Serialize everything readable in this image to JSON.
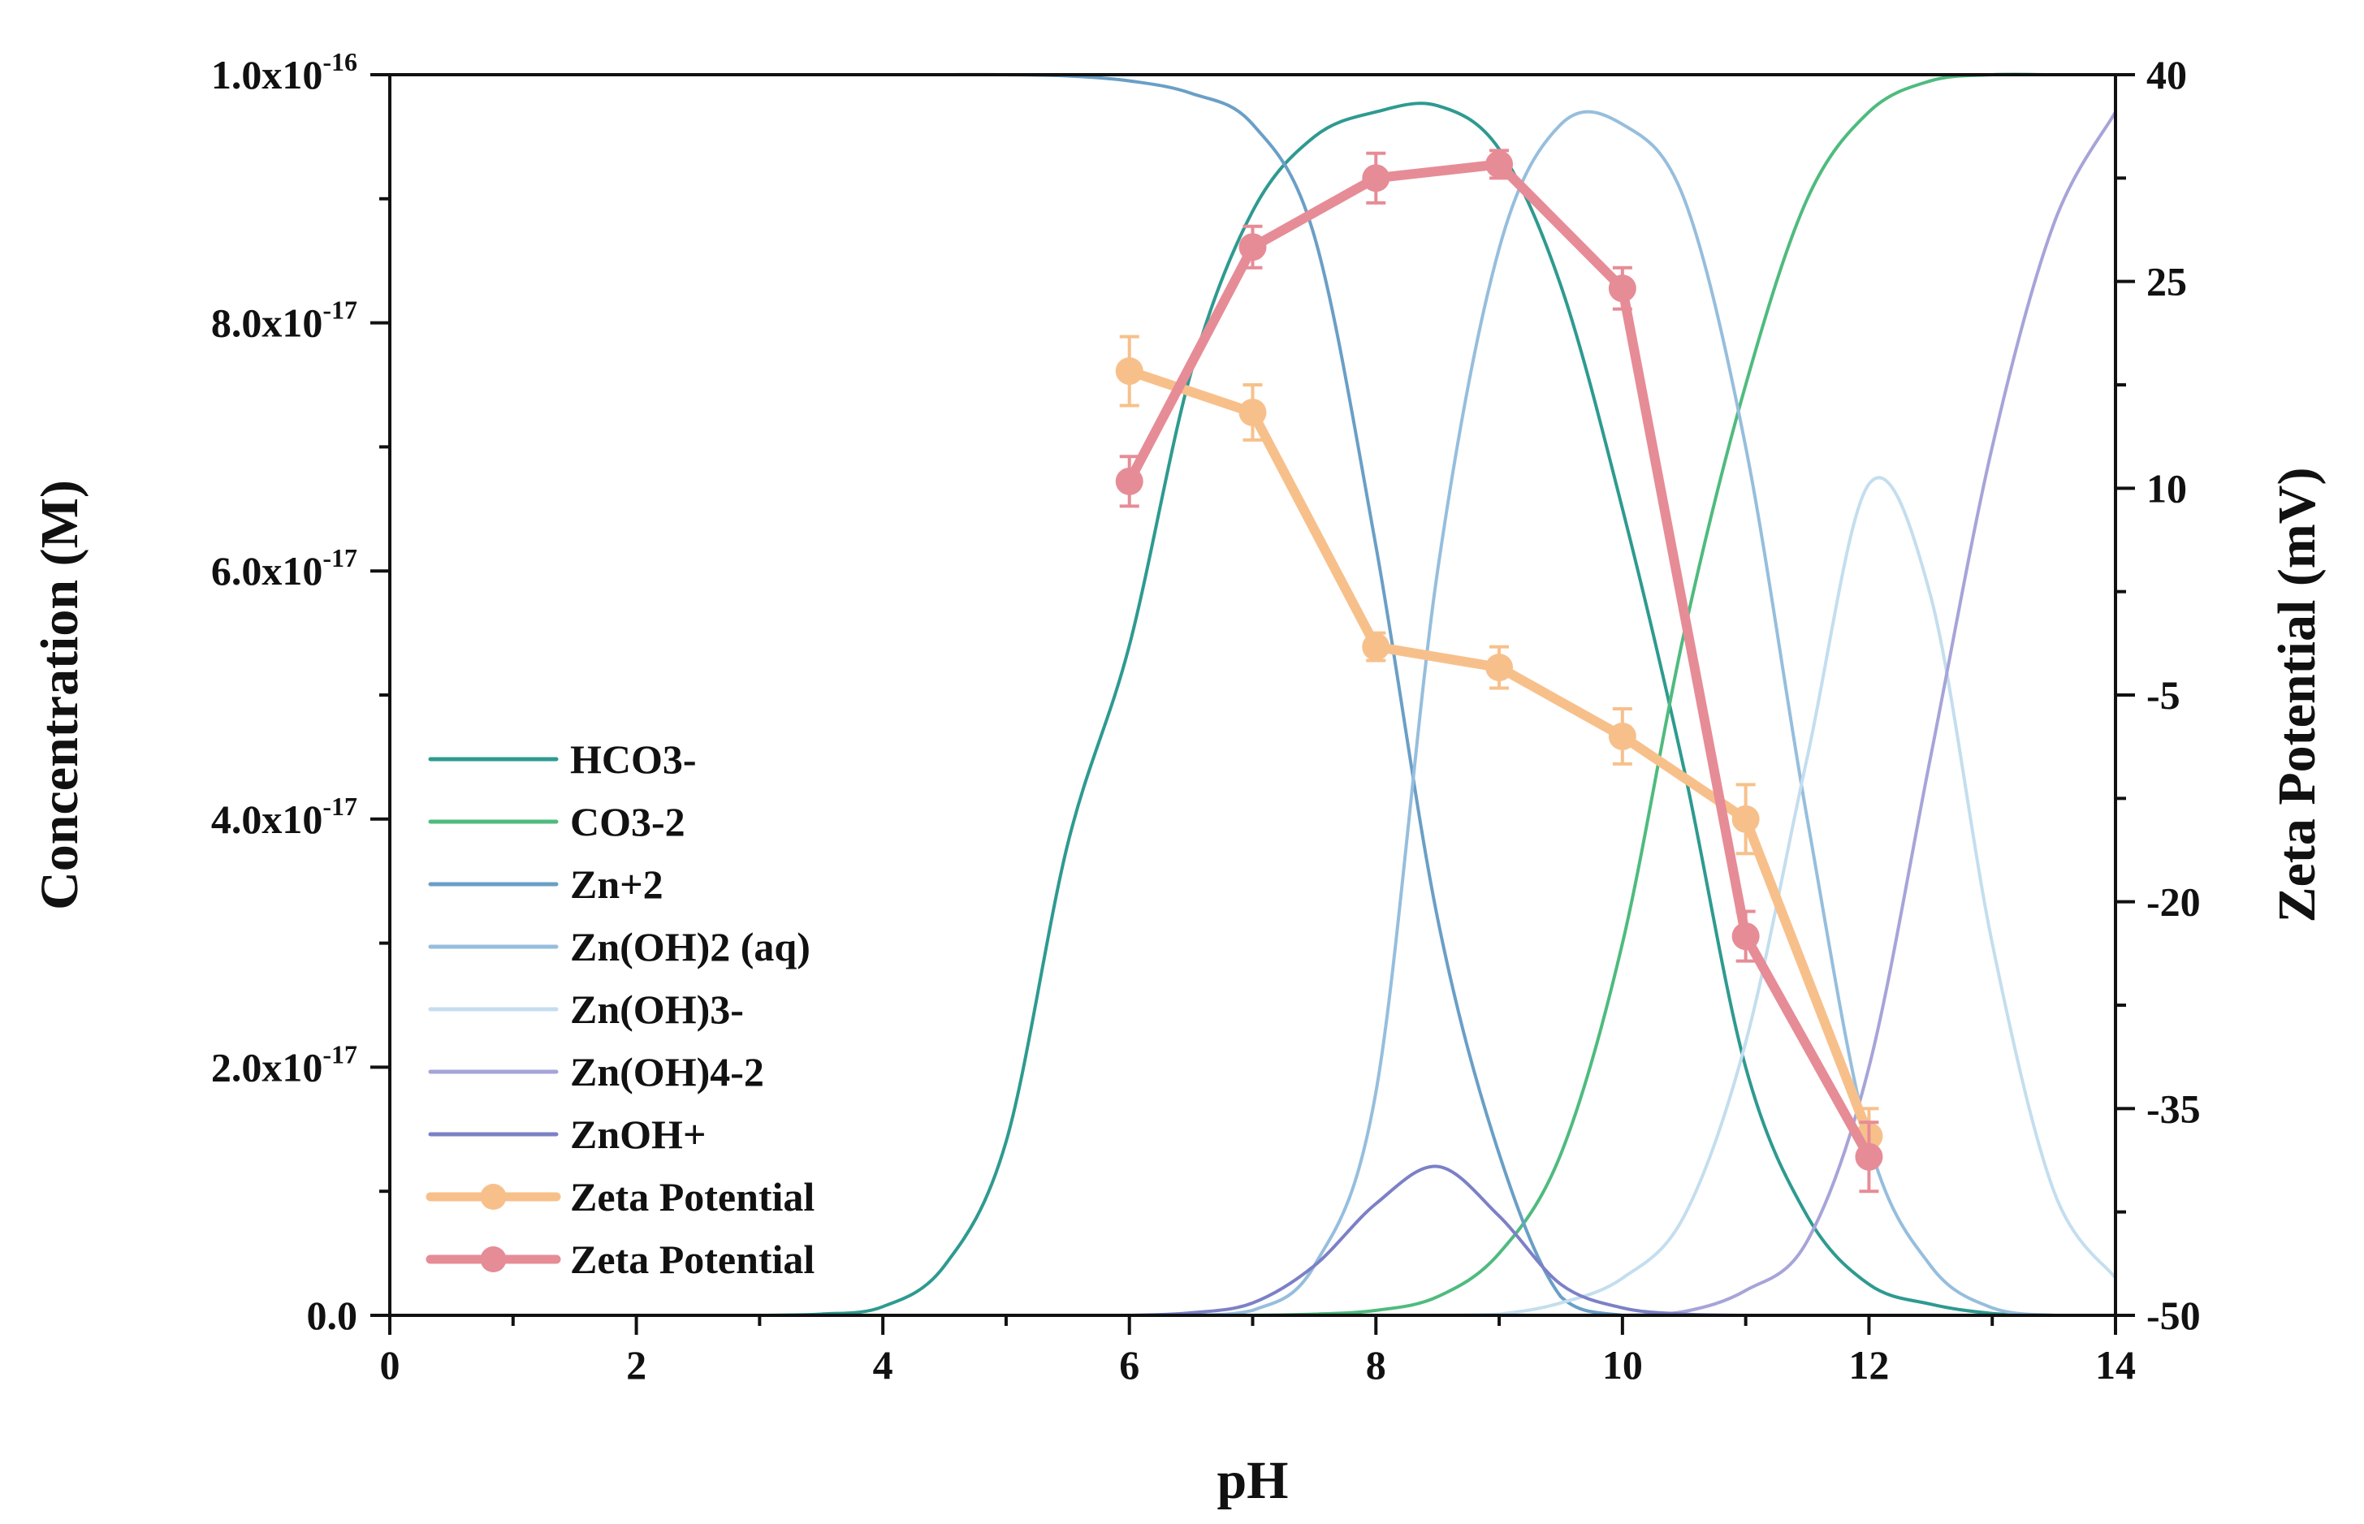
{
  "chart_data": {
    "type": "line",
    "title": "",
    "xlabel": "pH",
    "ylabel": "Concentration (M)",
    "y2label": "Zeta Potential (mV)",
    "xlim": [
      0,
      14
    ],
    "ylim": [
      0,
      1e-16
    ],
    "y2lim": [
      -50,
      40
    ],
    "grid": false,
    "legend_position": "left-center",
    "x_ticks": [
      {
        "value": 0,
        "label": "0"
      },
      {
        "value": 2,
        "label": "2"
      },
      {
        "value": 4,
        "label": "4"
      },
      {
        "value": 6,
        "label": "6"
      },
      {
        "value": 8,
        "label": "8"
      },
      {
        "value": 10,
        "label": "10"
      },
      {
        "value": 12,
        "label": "12"
      },
      {
        "value": 14,
        "label": "14"
      }
    ],
    "y_ticks": [
      {
        "value": 0,
        "label": "0.0",
        "exp": ""
      },
      {
        "value": 2e-17,
        "label": "2.0x10",
        "exp": "-17"
      },
      {
        "value": 4e-17,
        "label": "4.0x10",
        "exp": "-17"
      },
      {
        "value": 6e-17,
        "label": "6.0x10",
        "exp": "-17"
      },
      {
        "value": 8e-17,
        "label": "8.0x10",
        "exp": "-17"
      },
      {
        "value": 1e-16,
        "label": "1.0x10",
        "exp": "-16"
      }
    ],
    "y2_ticks": [
      {
        "value": 40,
        "label": "40"
      },
      {
        "value": 25,
        "label": "25"
      },
      {
        "value": 10,
        "label": "10"
      },
      {
        "value": -5,
        "label": "-5"
      },
      {
        "value": -20,
        "label": "-20"
      },
      {
        "value": -35,
        "label": "-35"
      },
      {
        "value": -50,
        "label": "-50"
      }
    ],
    "x": [
      0,
      0.5,
      1,
      1.5,
      2,
      2.5,
      3,
      3.5,
      4,
      4.5,
      5,
      5.5,
      6,
      6.5,
      7,
      7.5,
      8,
      8.5,
      9,
      9.5,
      10,
      10.5,
      11,
      11.5,
      12,
      12.5,
      13,
      13.5,
      14
    ],
    "series": [
      {
        "name": "HCO3-",
        "color": "#2e9a90",
        "axis": "left",
        "values": [
          0,
          0,
          0,
          0,
          0,
          0,
          0,
          1e-19,
          7e-19,
          4e-18,
          1.4e-17,
          3.8e-17,
          5.4e-17,
          7.6e-17,
          8.9e-17,
          9.5e-17,
          9.7e-17,
          9.75e-17,
          9.4e-17,
          8.3e-17,
          6.5e-17,
          4.4e-17,
          2e-17,
          8e-18,
          2.5e-18,
          9e-19,
          1.5e-19,
          0,
          0
        ]
      },
      {
        "name": "CO3-2",
        "color": "#4fbb7e",
        "axis": "left",
        "values": [
          0,
          0,
          0,
          0,
          0,
          0,
          0,
          0,
          0,
          0,
          0,
          0,
          0,
          0,
          0,
          1e-19,
          4e-19,
          1.5e-18,
          5e-18,
          1.3e-17,
          3e-17,
          5.5e-17,
          7.5e-17,
          9e-17,
          9.7e-17,
          9.95e-17,
          1e-16,
          1e-16,
          1e-16
        ]
      },
      {
        "name": "Zn+2",
        "color": "#6a9fc6",
        "axis": "left",
        "values": [
          1e-16,
          1e-16,
          1e-16,
          1e-16,
          1e-16,
          1e-16,
          1e-16,
          1e-16,
          1e-16,
          1e-16,
          1e-16,
          9.99e-17,
          9.95e-17,
          9.85e-17,
          9.6e-17,
          8.7e-17,
          6.2e-17,
          3.2e-17,
          1.3e-17,
          1.5e-18,
          0,
          0,
          0,
          0,
          0,
          0,
          0,
          0,
          0
        ]
      },
      {
        "name": "Zn(OH)2 (aq)",
        "color": "#96bedd",
        "axis": "left",
        "values": [
          0,
          0,
          0,
          0,
          0,
          0,
          0,
          0,
          0,
          0,
          0,
          0,
          0,
          0,
          4e-19,
          4e-18,
          1.8e-17,
          6e-17,
          8.6e-17,
          9.6e-17,
          9.6e-17,
          9e-17,
          7e-17,
          4e-17,
          1.4e-17,
          4e-18,
          6e-19,
          0,
          0
        ]
      },
      {
        "name": "Zn(OH)3-",
        "color": "#c4deee",
        "axis": "left",
        "values": [
          0,
          0,
          0,
          0,
          0,
          0,
          0,
          0,
          0,
          0,
          0,
          0,
          0,
          0,
          0,
          0,
          0,
          0,
          1e-19,
          1e-18,
          3e-18,
          8e-18,
          2.2e-17,
          4.5e-17,
          6.7e-17,
          5.8e-17,
          3e-17,
          1e-17,
          3e-18
        ]
      },
      {
        "name": "Zn(OH)4-2",
        "color": "#a6a4d8",
        "axis": "left",
        "values": [
          0,
          0,
          0,
          0,
          0,
          0,
          0,
          0,
          0,
          0,
          0,
          0,
          0,
          0,
          0,
          0,
          0,
          0,
          0,
          0,
          0,
          3e-19,
          2e-18,
          6e-18,
          2e-17,
          4.5e-17,
          7e-17,
          8.8e-17,
          9.7e-17
        ]
      },
      {
        "name": "ZnOH+",
        "color": "#7c80c6",
        "axis": "left",
        "values": [
          0,
          0,
          0,
          0,
          0,
          0,
          0,
          0,
          0,
          0,
          0,
          0,
          0,
          2e-19,
          1e-18,
          4e-18,
          9e-18,
          1.2e-17,
          8e-18,
          2.5e-18,
          6e-19,
          1e-19,
          0,
          0,
          0,
          0,
          0,
          0,
          0
        ]
      },
      {
        "name": "Zeta Potential",
        "color": "#f7c08b",
        "axis": "right",
        "marker": "circle",
        "x": [
          6,
          7,
          8,
          9,
          10,
          11,
          12
        ],
        "values": [
          18.5,
          15.5,
          -1.5,
          -3.0,
          -8.0,
          -14.0,
          -37.0
        ],
        "errors": [
          2.5,
          2.0,
          1.0,
          1.5,
          2.0,
          2.5,
          2.0
        ]
      },
      {
        "name": "Zeta Potential",
        "color": "#e68c96",
        "axis": "right",
        "marker": "circle",
        "x": [
          6,
          7,
          8,
          9,
          10,
          11,
          12
        ],
        "values": [
          10.5,
          27.5,
          32.5,
          33.5,
          24.5,
          -22.5,
          -38.5
        ],
        "errors": [
          1.8,
          1.5,
          1.8,
          1.0,
          1.5,
          1.8,
          2.5
        ]
      }
    ]
  }
}
